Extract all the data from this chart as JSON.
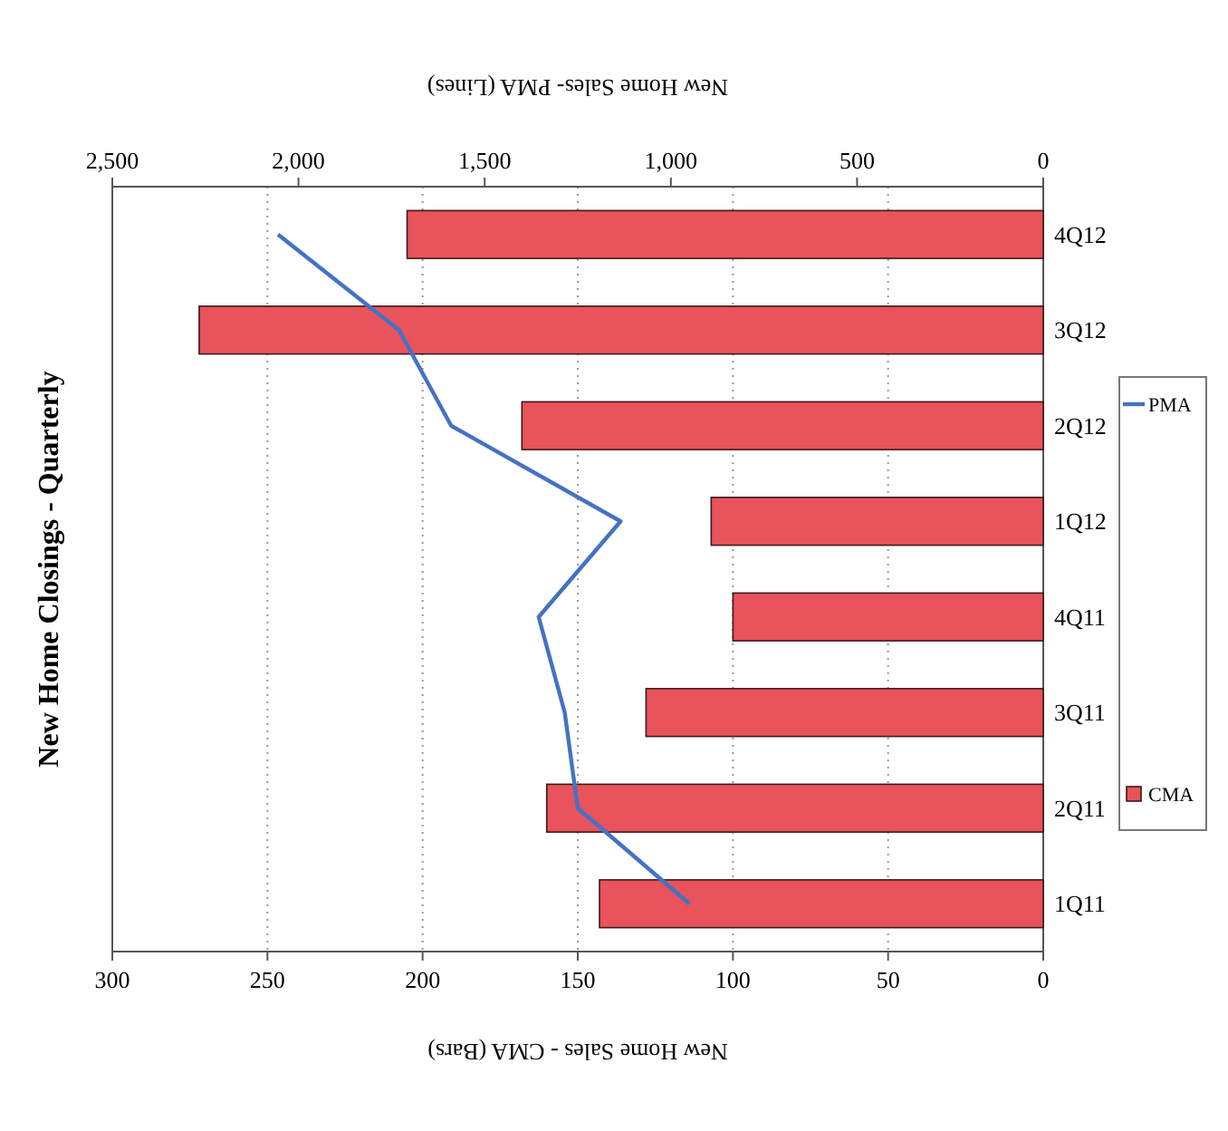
{
  "chart_data": {
    "type": "bar",
    "orientation": "horizontal",
    "title": "New Home Closings - Quarterly",
    "xlabel": "New Home Sales - CMA (Bars)",
    "x2label": "New Home Sales- PMA (Lines)",
    "categories": [
      "4Q12",
      "3Q12",
      "2Q12",
      "1Q12",
      "4Q11",
      "3Q11",
      "2Q11",
      "1Q11"
    ],
    "series": [
      {
        "name": "CMA",
        "color": "#e8535c",
        "values": [
          205,
          272,
          168,
          107,
          100,
          128,
          160,
          143
        ]
      },
      {
        "name": "PMA",
        "type": "line",
        "axis": "x2",
        "color": "#4472c4",
        "values": [
          2055,
          1730,
          1590,
          1135,
          1355,
          1285,
          1250,
          950
        ]
      }
    ],
    "xlim": [
      300,
      0
    ],
    "xticks": [
      300,
      250,
      200,
      150,
      100,
      50,
      0
    ],
    "x2lim": [
      2500,
      0
    ],
    "x2ticks": [
      {
        "value": 2500,
        "label": "2,500"
      },
      {
        "value": 2000,
        "label": "2,000"
      },
      {
        "value": 1500,
        "label": "1,500"
      },
      {
        "value": 1000,
        "label": "1,000"
      },
      500,
      0
    ],
    "grid": "x",
    "legend": "right",
    "marker": "none",
    "line_style": "solid"
  }
}
